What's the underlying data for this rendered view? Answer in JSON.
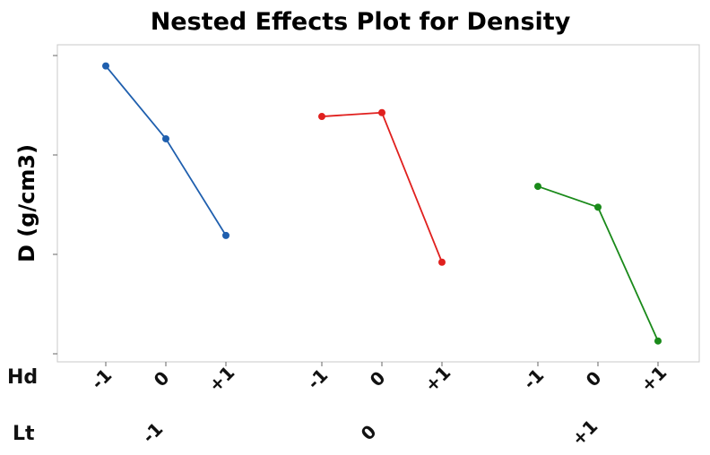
{
  "chart_data": {
    "type": "line",
    "title": "Nested Effects Plot for Density",
    "ylabel": "D (g/cm3)",
    "xlabel": "",
    "x_factor_labels": [
      "Hd",
      "Lt"
    ],
    "y_ticks_labeled": false,
    "ylim": [
      0,
      1
    ],
    "grid": false,
    "groups": [
      {
        "label": "-1",
        "color": "#1f5fae",
        "categories": [
          "-1",
          "0",
          "+1"
        ],
        "values": [
          0.965,
          0.72,
          0.395
        ]
      },
      {
        "label": "0",
        "color": "#e0201e",
        "categories": [
          "-1",
          "0",
          "+1"
        ],
        "values": [
          0.795,
          0.808,
          0.305
        ]
      },
      {
        "label": "+1",
        "color": "#1a8a1a",
        "categories": [
          "-1",
          "0",
          "+1"
        ],
        "values": [
          0.56,
          0.49,
          0.04
        ]
      }
    ]
  }
}
